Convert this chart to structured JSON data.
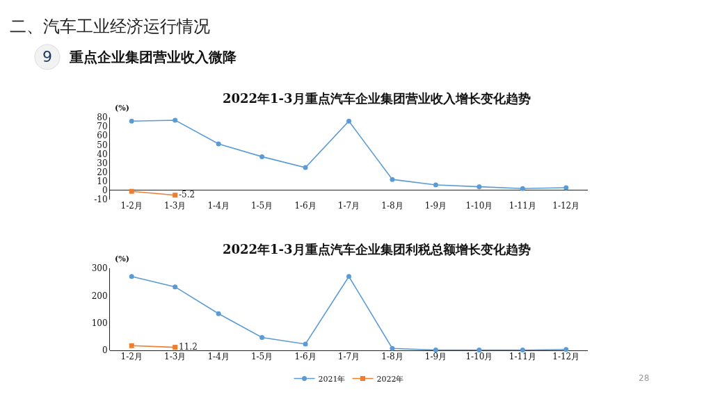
{
  "chart_data": [
    {
      "type": "line",
      "title": "2022年1-3月重点汽车企业集团营业收入增长变化趋势",
      "ylabel": "(%)",
      "annotations": [
        "二、汽车工业经济运行情况",
        "9",
        "重点企业集团营业收入微降"
      ],
      "categories": [
        "1-2月",
        "1-3月",
        "1-4月",
        "1-5月",
        "1-6月",
        "1-7月",
        "1-8月",
        "1-9月",
        "1-10月",
        "1-11月",
        "1-12月"
      ],
      "series": [
        {
          "color": "#5b9bd5",
          "marker": "circle",
          "values": [
            76,
            77,
            51,
            37,
            25,
            76,
            12,
            6,
            4,
            2,
            3
          ]
        },
        {
          "color": "#ed7d31",
          "marker": "square",
          "values": [
            -1,
            -5.2,
            null,
            null,
            null,
            null,
            null,
            null,
            null,
            null,
            null
          ],
          "value_labels": [
            null,
            "-5.2",
            null,
            null,
            null,
            null,
            null,
            null,
            null,
            null,
            null
          ]
        }
      ],
      "ylim": [
        -10,
        80
      ],
      "yticks": [
        -10,
        0,
        10,
        20,
        30,
        40,
        50,
        60,
        70,
        80
      ]
    },
    {
      "type": "line",
      "title": "2022年1-3月重点汽车企业集团利税总额增长变化趋势",
      "ylabel": "(%)",
      "annotations": [
        "28"
      ],
      "categories": [
        "1-2月",
        "1-3月",
        "1-4月",
        "1-5月",
        "1-6月",
        "1-7月",
        "1-8月",
        "1-9月",
        "1-10月",
        "1-11月",
        "1-12月"
      ],
      "series": [
        {
          "name": "2021年",
          "color": "#5b9bd5",
          "marker": "circle",
          "values": [
            270,
            232,
            134,
            47,
            23,
            270,
            7,
            1,
            1,
            1,
            3
          ]
        },
        {
          "name": "2022年",
          "color": "#ed7d31",
          "marker": "square",
          "values": [
            17,
            11.2,
            null,
            null,
            null,
            null,
            null,
            null,
            null,
            null,
            null
          ],
          "value_labels": [
            null,
            "11.2",
            null,
            null,
            null,
            null,
            null,
            null,
            null,
            null,
            null
          ]
        }
      ],
      "ylim": [
        0,
        300
      ],
      "yticks": [
        0,
        100,
        200,
        300
      ],
      "legend": "bottom"
    }
  ]
}
